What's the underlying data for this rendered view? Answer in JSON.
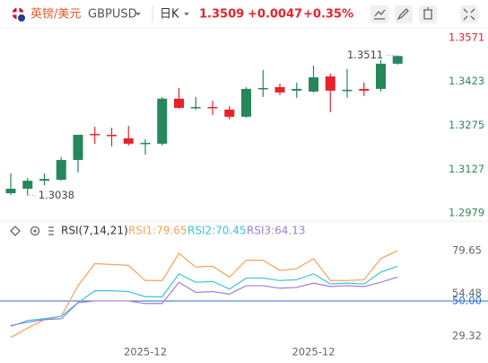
{
  "header": {
    "pair_name": "英镑/美元",
    "symbol": "GBPUSD",
    "period": "日K",
    "price": "1.3509",
    "change": "+0.0047",
    "change_pct": "+0.35%"
  },
  "chart_data": [
    {
      "type": "candlestick",
      "up_color": "#26875a",
      "down_color": "#e8212b",
      "categories": [
        null,
        null,
        null,
        null,
        null,
        null,
        null,
        null,
        "2025-12",
        null,
        null,
        null,
        null,
        null,
        null,
        null,
        null,
        null,
        "2025-12",
        null,
        null,
        null,
        null,
        null
      ],
      "open": [
        1.3046,
        1.3061,
        1.3088,
        1.3091,
        1.3158,
        1.3246,
        1.3243,
        1.3231,
        1.3213,
        1.3213,
        1.3365,
        1.3334,
        1.3337,
        1.3328,
        1.3304,
        1.3398,
        1.3404,
        1.3392,
        1.3389,
        1.344,
        1.3392,
        1.3398,
        1.3398,
        1.3483
      ],
      "high": [
        1.3113,
        1.3097,
        1.3113,
        1.3167,
        1.3243,
        1.327,
        1.3267,
        1.3273,
        1.3228,
        1.3371,
        1.3401,
        1.3371,
        1.3358,
        1.334,
        1.3404,
        1.3462,
        1.3416,
        1.3419,
        1.3477,
        1.345,
        1.3465,
        1.3419,
        1.3495,
        1.3511
      ],
      "low": [
        1.304,
        1.3038,
        1.3073,
        1.3088,
        1.3116,
        1.3213,
        1.3204,
        1.3207,
        1.3176,
        1.3207,
        1.3331,
        1.3328,
        1.331,
        1.3295,
        1.3301,
        1.3371,
        1.3377,
        1.3368,
        1.3386,
        1.3319,
        1.3368,
        1.3374,
        1.3389,
        1.348
      ],
      "close": [
        1.3061,
        1.3088,
        1.3094,
        1.3158,
        1.3243,
        1.3243,
        1.324,
        1.3213,
        1.3216,
        1.3365,
        1.3334,
        1.3337,
        1.3334,
        1.3304,
        1.3398,
        1.3401,
        1.3386,
        1.3398,
        1.3437,
        1.3392,
        1.3395,
        1.3392,
        1.3483,
        1.3509
      ],
      "ylim": [
        1.2955,
        1.3601
      ],
      "yticks": [
        1.2979,
        1.3127,
        1.3275,
        1.3423,
        1.3571
      ],
      "annotations": {
        "high": 1.3511,
        "low": 1.3038
      }
    },
    {
      "type": "line",
      "title": "RSI(7,14,21)",
      "series": [
        {
          "name": "RSI1",
          "label": "RSI1:79.65",
          "color": "#f4a259",
          "values": [
            28.5,
            34,
            39,
            41,
            59,
            72,
            71.5,
            71,
            62,
            62,
            78,
            70,
            70.5,
            64,
            74,
            74,
            68,
            69,
            75,
            62,
            62,
            62.5,
            75,
            79.65
          ]
        },
        {
          "name": "RSI2",
          "label": "RSI2:70.45",
          "color": "#3cc3d8",
          "values": [
            35,
            38.5,
            39.5,
            41,
            49,
            56,
            56,
            55.5,
            52.5,
            52.5,
            66,
            61,
            61.5,
            57,
            63.5,
            63.5,
            62,
            62.5,
            66,
            60,
            60.5,
            60,
            67,
            70.45
          ]
        },
        {
          "name": "RSI3",
          "label": "RSI3:64.13",
          "color": "#9b7fd8",
          "values": [
            35.5,
            37.5,
            39,
            39.5,
            49,
            50,
            50,
            50,
            48.5,
            48.5,
            61,
            55,
            55.5,
            54,
            59,
            59,
            57.5,
            58,
            60.5,
            58.5,
            59,
            58.5,
            61,
            64.13
          ]
        }
      ],
      "ylim": [
        23.5,
        91.8
      ],
      "yticks": [
        29.32,
        {
          "value": 50,
          "label": "50.00"
        },
        54.48,
        79.65
      ],
      "reference_line": {
        "value": 50,
        "color": "#2a6fd6"
      }
    }
  ]
}
